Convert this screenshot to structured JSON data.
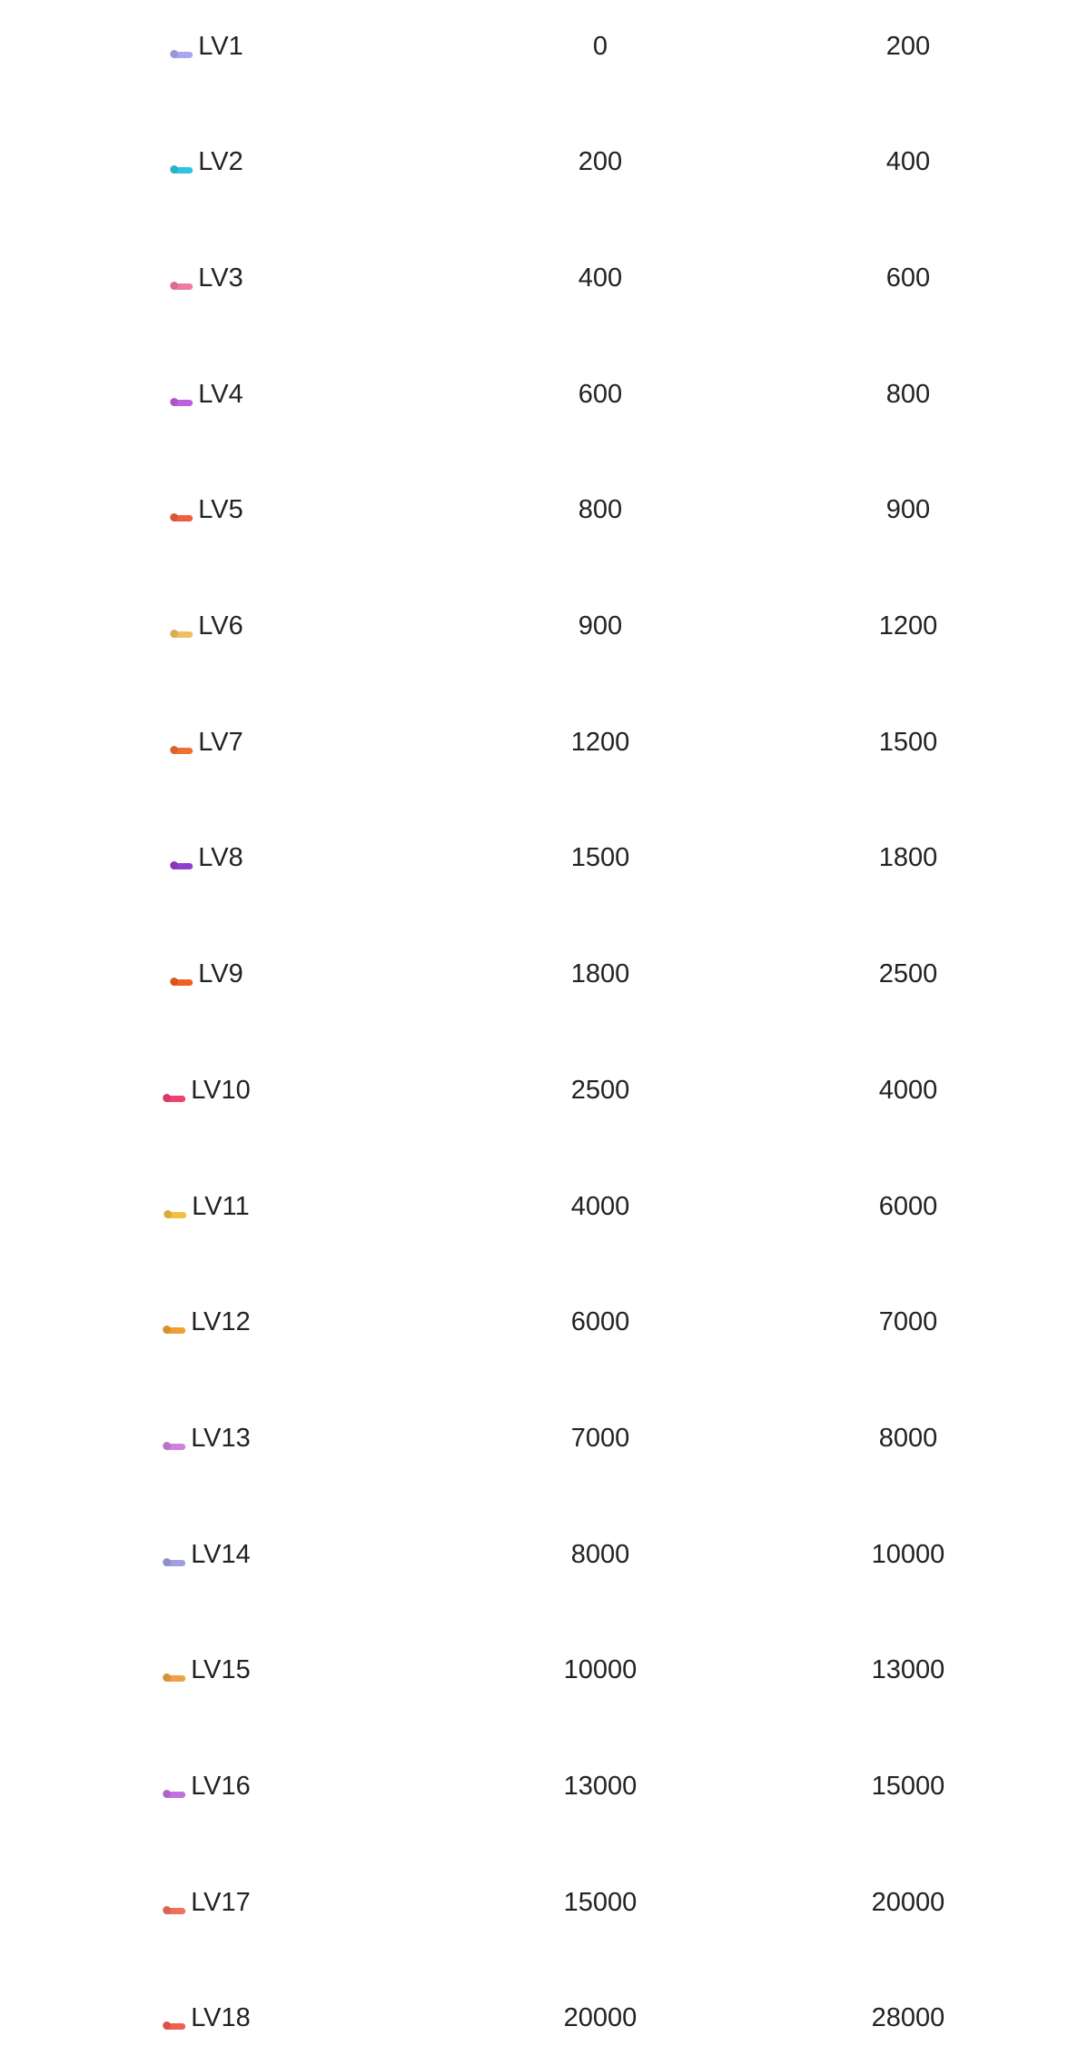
{
  "levels": [
    {
      "label": "LV1",
      "min": "0",
      "max": "200",
      "badge_color": "#a8a8f2"
    },
    {
      "label": "LV2",
      "min": "200",
      "max": "400",
      "badge_color": "#2ec5e0"
    },
    {
      "label": "LV3",
      "min": "400",
      "max": "600",
      "badge_color": "#f07aa0"
    },
    {
      "label": "LV4",
      "min": "600",
      "max": "800",
      "badge_color": "#c060e0"
    },
    {
      "label": "LV5",
      "min": "800",
      "max": "900",
      "badge_color": "#f06040"
    },
    {
      "label": "LV6",
      "min": "900",
      "max": "1200",
      "badge_color": "#f0c060"
    },
    {
      "label": "LV7",
      "min": "1200",
      "max": "1500",
      "badge_color": "#f07030"
    },
    {
      "label": "LV8",
      "min": "1500",
      "max": "1800",
      "badge_color": "#9040d0"
    },
    {
      "label": "LV9",
      "min": "1800",
      "max": "2500",
      "badge_color": "#f06020"
    },
    {
      "label": "LV10",
      "min": "2500",
      "max": "4000",
      "badge_color": "#f04070"
    },
    {
      "label": "LV11",
      "min": "4000",
      "max": "6000",
      "badge_color": "#f0c040"
    },
    {
      "label": "LV12",
      "min": "6000",
      "max": "7000",
      "badge_color": "#f0a030"
    },
    {
      "label": "LV13",
      "min": "7000",
      "max": "8000",
      "badge_color": "#d080e0"
    },
    {
      "label": "LV14",
      "min": "8000",
      "max": "10000",
      "badge_color": "#a0a0e0"
    },
    {
      "label": "LV15",
      "min": "10000",
      "max": "13000",
      "badge_color": "#f0a040"
    },
    {
      "label": "LV16",
      "min": "13000",
      "max": "15000",
      "badge_color": "#c070e0"
    },
    {
      "label": "LV17",
      "min": "15000",
      "max": "20000",
      "badge_color": "#f07060"
    },
    {
      "label": "LV18",
      "min": "20000",
      "max": "28000",
      "badge_color": "#f06050"
    }
  ]
}
